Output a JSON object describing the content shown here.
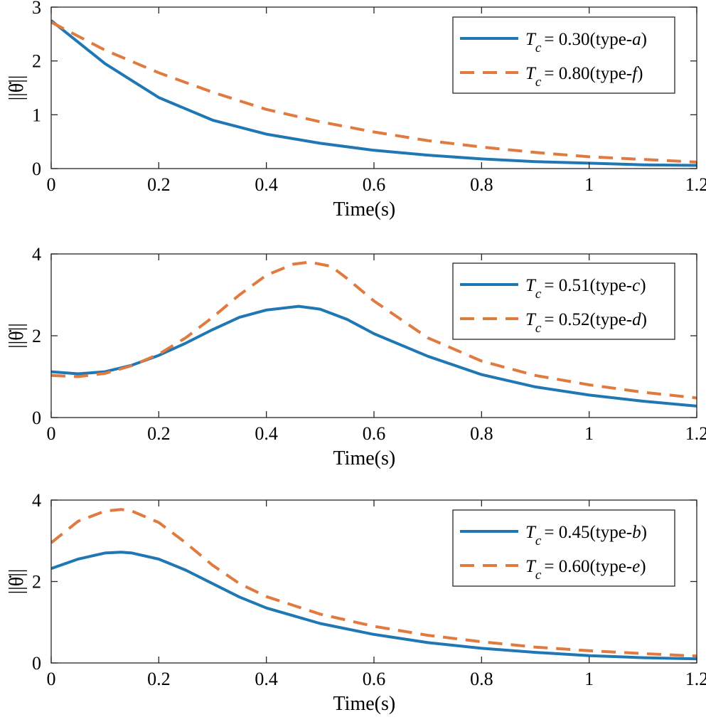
{
  "chart_data": [
    {
      "type": "line",
      "xlabel": "Time(s)",
      "ylabel": "||θ̇||",
      "xlim": [
        0,
        1.2
      ],
      "ylim": [
        0,
        3
      ],
      "xticks": [
        "0",
        "0.2",
        "0.4",
        "0.6",
        "0.8",
        "1",
        "1.2"
      ],
      "yticks": [
        "0",
        "1",
        "2",
        "3"
      ],
      "legend_position": "top-right",
      "grid": false,
      "series": [
        {
          "name": "T_c = 0.30(type-a)",
          "legend": {
            "sym": "T",
            "sub": "c",
            "value": "= 0.30(type-",
            "type": "a",
            "close": ")"
          },
          "style": "solid",
          "color": "#1f77b4",
          "x": [
            0,
            0.1,
            0.2,
            0.3,
            0.4,
            0.5,
            0.6,
            0.7,
            0.8,
            0.9,
            1.0,
            1.1,
            1.2
          ],
          "y": [
            2.75,
            1.95,
            1.32,
            0.9,
            0.64,
            0.47,
            0.34,
            0.25,
            0.18,
            0.13,
            0.1,
            0.07,
            0.06
          ]
        },
        {
          "name": "T_c = 0.80(type-f)",
          "legend": {
            "sym": "T",
            "sub": "c",
            "value": "= 0.80(type-",
            "type": "f",
            "close": ")"
          },
          "style": "dashed",
          "color": "#e07a3f",
          "x": [
            0,
            0.1,
            0.2,
            0.3,
            0.4,
            0.5,
            0.6,
            0.7,
            0.8,
            0.9,
            1.0,
            1.1,
            1.2
          ],
          "y": [
            2.72,
            2.2,
            1.78,
            1.42,
            1.1,
            0.87,
            0.68,
            0.52,
            0.4,
            0.3,
            0.22,
            0.17,
            0.12
          ]
        }
      ]
    },
    {
      "type": "line",
      "xlabel": "Time(s)",
      "ylabel": "||θ̇||",
      "xlim": [
        0,
        1.2
      ],
      "ylim": [
        0,
        4
      ],
      "xticks": [
        "0",
        "0.2",
        "0.4",
        "0.6",
        "0.8",
        "1",
        "1.2"
      ],
      "yticks": [
        "0",
        "2",
        "4"
      ],
      "legend_position": "top-right",
      "grid": false,
      "series": [
        {
          "name": "T_c = 0.51(type-c)",
          "legend": {
            "sym": "T",
            "sub": "c",
            "value": "= 0.51(type-",
            "type": "c",
            "close": ")"
          },
          "style": "solid",
          "color": "#1f77b4",
          "x": [
            0,
            0.05,
            0.1,
            0.15,
            0.2,
            0.25,
            0.3,
            0.35,
            0.4,
            0.46,
            0.5,
            0.55,
            0.6,
            0.7,
            0.8,
            0.9,
            1.0,
            1.1,
            1.2
          ],
          "y": [
            1.12,
            1.07,
            1.12,
            1.28,
            1.52,
            1.82,
            2.15,
            2.45,
            2.63,
            2.72,
            2.65,
            2.4,
            2.05,
            1.5,
            1.05,
            0.75,
            0.55,
            0.4,
            0.28
          ]
        },
        {
          "name": "T_c = 0.52(type-d)",
          "legend": {
            "sym": "T",
            "sub": "c",
            "value": "= 0.52(type-",
            "type": "d",
            "close": ")"
          },
          "style": "dashed",
          "color": "#e07a3f",
          "x": [
            0,
            0.05,
            0.1,
            0.15,
            0.2,
            0.25,
            0.3,
            0.35,
            0.4,
            0.45,
            0.48,
            0.52,
            0.55,
            0.6,
            0.7,
            0.8,
            0.9,
            1.0,
            1.1,
            1.2
          ],
          "y": [
            1.03,
            1.0,
            1.08,
            1.27,
            1.55,
            1.95,
            2.45,
            3.0,
            3.48,
            3.75,
            3.8,
            3.7,
            3.4,
            2.85,
            1.95,
            1.38,
            1.03,
            0.8,
            0.62,
            0.48
          ]
        }
      ]
    },
    {
      "type": "line",
      "xlabel": "Time(s)",
      "ylabel": "||θ̇||",
      "xlim": [
        0,
        1.2
      ],
      "ylim": [
        0,
        4
      ],
      "xticks": [
        "0",
        "0.2",
        "0.4",
        "0.6",
        "0.8",
        "1",
        "1.2"
      ],
      "yticks": [
        "0",
        "2",
        "4"
      ],
      "legend_position": "top-right",
      "grid": false,
      "series": [
        {
          "name": "T_c = 0.45(type-b)",
          "legend": {
            "sym": "T",
            "sub": "c",
            "value": "= 0.45(type-",
            "type": "b",
            "close": ")"
          },
          "style": "solid",
          "color": "#1f77b4",
          "x": [
            0,
            0.05,
            0.1,
            0.13,
            0.15,
            0.2,
            0.25,
            0.3,
            0.35,
            0.4,
            0.5,
            0.6,
            0.7,
            0.8,
            0.9,
            1.0,
            1.1,
            1.2
          ],
          "y": [
            2.32,
            2.55,
            2.7,
            2.72,
            2.7,
            2.55,
            2.28,
            1.95,
            1.62,
            1.35,
            0.97,
            0.7,
            0.5,
            0.36,
            0.26,
            0.18,
            0.13,
            0.1
          ]
        },
        {
          "name": "T_c = 0.60(type-e)",
          "legend": {
            "sym": "T",
            "sub": "c",
            "value": "= 0.60(type-",
            "type": "e",
            "close": ")"
          },
          "style": "dashed",
          "color": "#e07a3f",
          "x": [
            0,
            0.05,
            0.1,
            0.13,
            0.15,
            0.2,
            0.25,
            0.3,
            0.35,
            0.4,
            0.5,
            0.6,
            0.7,
            0.8,
            0.9,
            1.0,
            1.1,
            1.2
          ],
          "y": [
            2.95,
            3.48,
            3.73,
            3.77,
            3.73,
            3.45,
            2.95,
            2.4,
            1.95,
            1.63,
            1.2,
            0.9,
            0.68,
            0.52,
            0.39,
            0.3,
            0.23,
            0.17
          ]
        }
      ]
    }
  ]
}
